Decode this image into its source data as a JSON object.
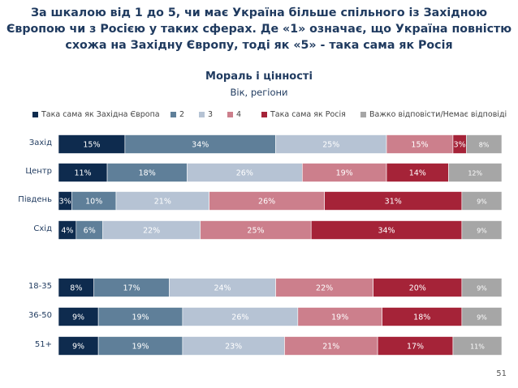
{
  "title_lines": [
    "За шкалою від 1 до 5, чи має Україна більше спільного із Західною",
    "Європою чи з Росією у таких сферах. Де «1» означає, що Україна повністю",
    "схожа на Західну Європу, тоді як «5» - така сама як Росія"
  ],
  "subtitle": "Мораль і цінності",
  "subtitle2": "Вік, регіони",
  "page_number": "51",
  "colors": [
    "#0e2b4e",
    "#5f7f99",
    "#b6c3d4",
    "#cc7f8c",
    "#a52338",
    "#a6a6a6"
  ],
  "chart_data": {
    "type": "bar",
    "orientation": "horizontal",
    "stacked": true,
    "legend": [
      "Така сама як Західна Європа",
      "2",
      "3",
      "4",
      "Така сама як Росія",
      "Важко відповісти/Немає відповіді"
    ],
    "legend_position": "top",
    "categories": [
      "Захід",
      "Центр",
      "Південь",
      "Схід",
      "18-35",
      "36-50",
      "51+"
    ],
    "series": [
      {
        "name": "Така сама як Західна Європа",
        "values": [
          15,
          11,
          3,
          4,
          8,
          9,
          9
        ]
      },
      {
        "name": "2",
        "values": [
          34,
          18,
          10,
          6,
          17,
          19,
          19
        ]
      },
      {
        "name": "3",
        "values": [
          25,
          26,
          21,
          22,
          24,
          26,
          23
        ]
      },
      {
        "name": "4",
        "values": [
          15,
          19,
          26,
          25,
          22,
          19,
          21
        ]
      },
      {
        "name": "Така сама як Росія",
        "values": [
          3,
          14,
          31,
          34,
          20,
          18,
          17
        ]
      },
      {
        "name": "Важко відповісти/Немає відповіді",
        "values": [
          8,
          12,
          9,
          9,
          9,
          9,
          11
        ]
      }
    ],
    "value_labels": [
      [
        "15%",
        "34%",
        "25%",
        "15%",
        "3%",
        "8%"
      ],
      [
        "11%",
        "18%",
        "26%",
        "19%",
        "14%",
        "12%"
      ],
      [
        "3%",
        "10%",
        "21%",
        "26%",
        "31%",
        "9%"
      ],
      [
        "4%",
        "6%",
        "22%",
        "25%",
        "34%",
        "9%"
      ],
      [
        "8%",
        "17%",
        "24%",
        "22%",
        "20%",
        "9%"
      ],
      [
        "9%",
        "19%",
        "26%",
        "19%",
        "18%",
        "9%"
      ],
      [
        "9%",
        "19%",
        "23%",
        "21%",
        "17%",
        "11%"
      ]
    ]
  }
}
